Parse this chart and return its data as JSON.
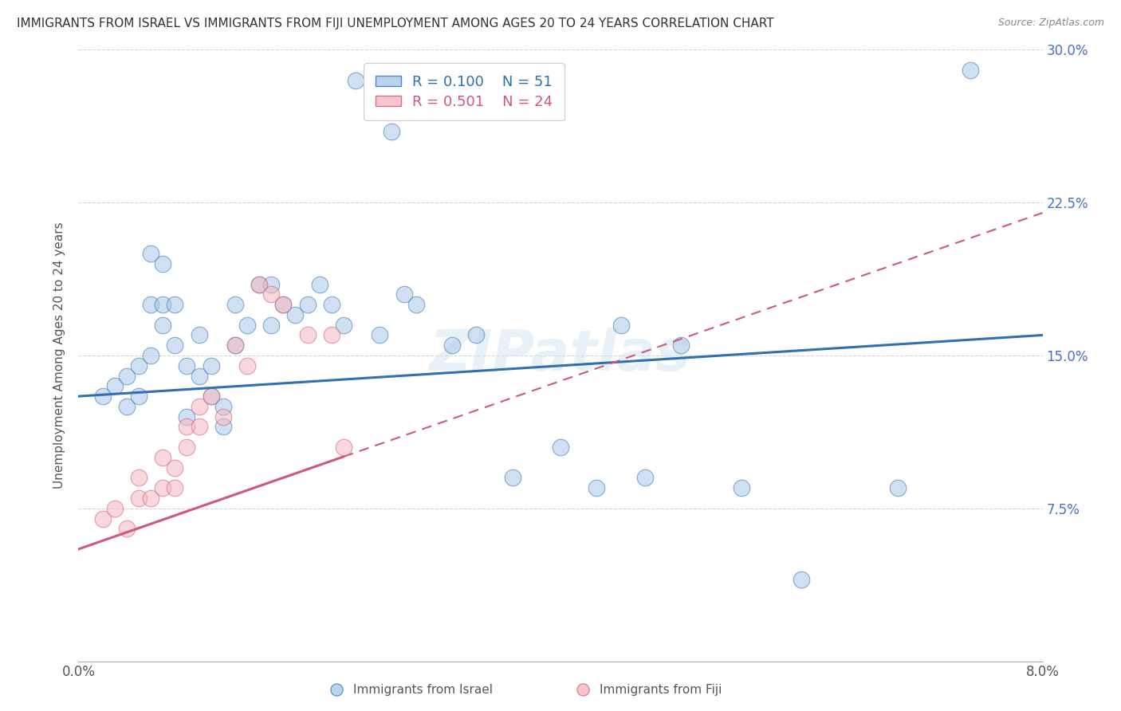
{
  "title": "IMMIGRANTS FROM ISRAEL VS IMMIGRANTS FROM FIJI UNEMPLOYMENT AMONG AGES 20 TO 24 YEARS CORRELATION CHART",
  "source": "Source: ZipAtlas.com",
  "ylabel": "Unemployment Among Ages 20 to 24 years",
  "legend_bottom": [
    "Immigrants from Israel",
    "Immigrants from Fiji"
  ],
  "R_israel": 0.1,
  "N_israel": 51,
  "R_fiji": 0.501,
  "N_fiji": 24,
  "xlim": [
    0.0,
    0.08
  ],
  "ylim": [
    0.0,
    0.3
  ],
  "xticks": [
    0.0,
    0.02,
    0.04,
    0.06,
    0.08
  ],
  "xticklabels": [
    "0.0%",
    "",
    "",
    "",
    "8.0%"
  ],
  "yticks": [
    0.0,
    0.075,
    0.15,
    0.225,
    0.3
  ],
  "yticklabels": [
    "",
    "7.5%",
    "15.0%",
    "22.5%",
    "30.0%"
  ],
  "color_israel": "#a8c8e8",
  "color_fiji": "#f4b8c0",
  "trend_israel_color": "#3070b0",
  "trend_fiji_color": "#d05878",
  "background_color": "#ffffff",
  "israel_x": [
    0.002,
    0.003,
    0.004,
    0.004,
    0.005,
    0.005,
    0.006,
    0.006,
    0.006,
    0.007,
    0.007,
    0.007,
    0.008,
    0.008,
    0.009,
    0.009,
    0.01,
    0.01,
    0.011,
    0.011,
    0.012,
    0.012,
    0.013,
    0.013,
    0.014,
    0.015,
    0.016,
    0.016,
    0.017,
    0.018,
    0.019,
    0.02,
    0.021,
    0.022,
    0.023,
    0.025,
    0.026,
    0.027,
    0.028,
    0.031,
    0.033,
    0.036,
    0.04,
    0.043,
    0.045,
    0.047,
    0.05,
    0.055,
    0.06,
    0.068,
    0.074
  ],
  "israel_y": [
    0.13,
    0.135,
    0.14,
    0.125,
    0.145,
    0.13,
    0.2,
    0.175,
    0.15,
    0.195,
    0.175,
    0.165,
    0.175,
    0.155,
    0.145,
    0.12,
    0.16,
    0.14,
    0.145,
    0.13,
    0.125,
    0.115,
    0.175,
    0.155,
    0.165,
    0.185,
    0.185,
    0.165,
    0.175,
    0.17,
    0.175,
    0.185,
    0.175,
    0.165,
    0.285,
    0.16,
    0.26,
    0.18,
    0.175,
    0.155,
    0.16,
    0.09,
    0.105,
    0.085,
    0.165,
    0.09,
    0.155,
    0.085,
    0.04,
    0.085,
    0.29
  ],
  "fiji_x": [
    0.002,
    0.003,
    0.004,
    0.005,
    0.005,
    0.006,
    0.007,
    0.007,
    0.008,
    0.008,
    0.009,
    0.009,
    0.01,
    0.01,
    0.011,
    0.012,
    0.013,
    0.014,
    0.015,
    0.016,
    0.017,
    0.019,
    0.021,
    0.022
  ],
  "fiji_y": [
    0.07,
    0.075,
    0.065,
    0.09,
    0.08,
    0.08,
    0.085,
    0.1,
    0.095,
    0.085,
    0.115,
    0.105,
    0.125,
    0.115,
    0.13,
    0.12,
    0.155,
    0.145,
    0.185,
    0.18,
    0.175,
    0.16,
    0.16,
    0.105
  ],
  "watermark": "ZIPatlas",
  "title_fontsize": 11,
  "axis_label_fontsize": 11,
  "tick_fontsize": 12,
  "legend_fontsize": 13
}
